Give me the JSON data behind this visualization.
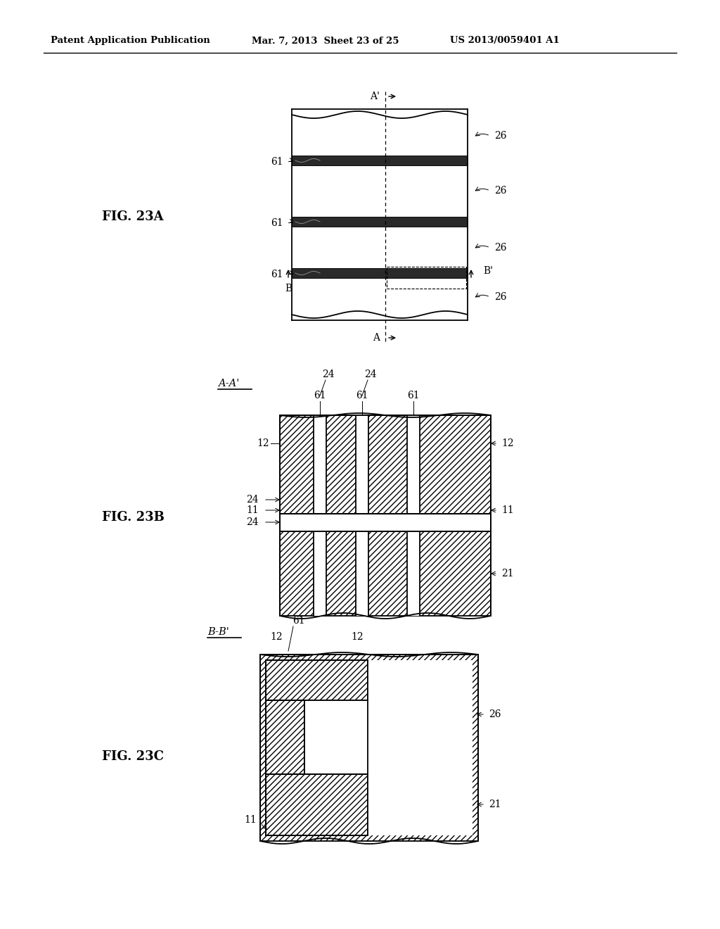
{
  "header_left": "Patent Application Publication",
  "header_mid": "Mar. 7, 2013  Sheet 23 of 25",
  "header_right": "US 2013/0059401 A1",
  "fig23a_label": "FIG. 23A",
  "fig23b_label": "FIG. 23B",
  "fig23c_label": "FIG. 23C",
  "bg_color": "#ffffff",
  "line_color": "#000000"
}
